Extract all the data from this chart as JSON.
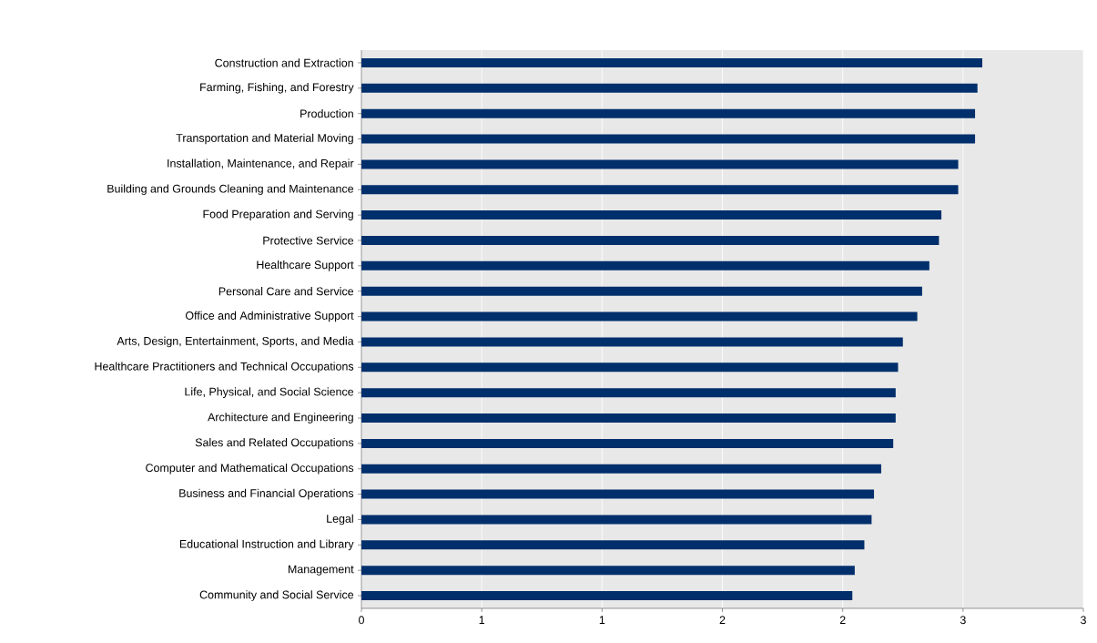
{
  "chart_data": {
    "type": "bar",
    "orientation": "horizontal",
    "categories": [
      "Construction and Extraction",
      "Farming, Fishing, and Forestry",
      "Production",
      "Transportation and Material Moving",
      "Installation, Maintenance, and Repair",
      "Building and Grounds Cleaning and Maintenance",
      "Food Preparation and Serving",
      "Protective Service",
      "Healthcare Support",
      "Personal Care and Service",
      "Office and Administrative Support",
      "Arts, Design, Entertainment, Sports, and Media",
      "Healthcare Practitioners and Technical Occupations",
      "Life, Physical, and Social Science",
      "Architecture and Engineering",
      "Sales and Related Occupations",
      "Computer and Mathematical Occupations",
      "Business and Financial Operations",
      "Legal",
      "Educational Instruction and Library",
      "Management",
      "Community and Social Service"
    ],
    "values": [
      2.58,
      2.56,
      2.55,
      2.55,
      2.48,
      2.48,
      2.41,
      2.4,
      2.36,
      2.33,
      2.31,
      2.25,
      2.23,
      2.22,
      2.22,
      2.21,
      2.16,
      2.13,
      2.12,
      2.09,
      2.05,
      2.04
    ],
    "color": "#002f6c",
    "xlim": [
      0,
      3
    ],
    "xticks": [
      0,
      {
        "value": 0.5,
        "label": "1"
      },
      {
        "value": 1,
        "label": "1"
      },
      {
        "value": 1.5,
        "label": "2"
      },
      {
        "value": 2,
        "label": "2"
      },
      {
        "value": 2.5,
        "label": "3"
      },
      {
        "value": 3,
        "label": "3"
      }
    ],
    "grid": "x"
  }
}
